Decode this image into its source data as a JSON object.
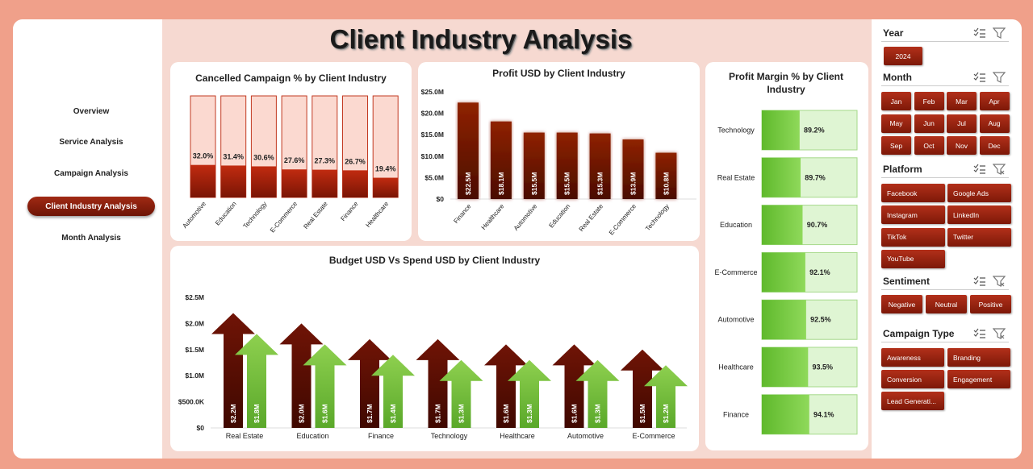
{
  "title": "Client Industry Analysis",
  "nav": {
    "items": [
      {
        "label": "Overview",
        "active": false
      },
      {
        "label": "Service Analysis",
        "active": false
      },
      {
        "label": "Campaign Analysis",
        "active": false
      },
      {
        "label": "Client Industry Analysis",
        "active": true
      },
      {
        "label": "Month Analysis",
        "active": false
      }
    ]
  },
  "colors": {
    "accent": "#8b1a0a",
    "dark_bar": "#6e1403",
    "light_bar": "#f9d7cf",
    "green": "#6cbf36",
    "green_bg": "#dff5d3"
  },
  "chart_data": [
    {
      "type": "bar",
      "title": "Cancelled Campaign % by Client Industry",
      "categories": [
        "Automotive",
        "Education",
        "Technology",
        "E-Commerce",
        "Real Estate",
        "Finance",
        "Healthcare"
      ],
      "values": [
        32.0,
        31.4,
        30.6,
        27.6,
        27.3,
        26.7,
        19.4
      ],
      "labels": [
        "32.0%",
        "31.4%",
        "30.6%",
        "27.6%",
        "27.3%",
        "26.7%",
        "19.4%"
      ],
      "ylim": [
        0,
        100
      ]
    },
    {
      "type": "bar",
      "title": "Profit USD by Client Industry",
      "categories": [
        "Finance",
        "Healthcare",
        "Automotive",
        "Education",
        "Real Estate",
        "E-Commerce",
        "Technology"
      ],
      "values": [
        22.5,
        18.1,
        15.5,
        15.5,
        15.3,
        13.9,
        10.8
      ],
      "labels": [
        "$22.5M",
        "$18.1M",
        "$15.5M",
        "$15.5M",
        "$15.3M",
        "$13.9M",
        "$10.8M"
      ],
      "yticks": [
        "$0",
        "$5.0M",
        "$10.0M",
        "$15.0M",
        "$20.0M",
        "$25.0M"
      ],
      "ylim": [
        0,
        25
      ]
    },
    {
      "type": "bar",
      "title": "Profit Margin % by Client Industry",
      "orientation": "horizontal",
      "categories": [
        "Technology",
        "Real Estate",
        "Education",
        "E-Commerce",
        "Automotive",
        "Healthcare",
        "Finance"
      ],
      "values": [
        89.2,
        89.7,
        90.7,
        92.1,
        92.5,
        93.5,
        94.1
      ],
      "labels": [
        "89.2%",
        "89.7%",
        "90.7%",
        "92.1%",
        "92.5%",
        "93.5%",
        "94.1%"
      ],
      "xlim": [
        0,
        100
      ]
    },
    {
      "type": "bar",
      "title": "Budget USD Vs Spend USD by Client Industry",
      "categories": [
        "Real Estate",
        "Education",
        "Finance",
        "Technology",
        "Healthcare",
        "Automotive",
        "E-Commerce"
      ],
      "series": [
        {
          "name": "Budget USD",
          "values": [
            2.2,
            2.0,
            1.7,
            1.7,
            1.6,
            1.6,
            1.5
          ],
          "labels": [
            "$2.2M",
            "$2.0M",
            "$1.7M",
            "$1.7M",
            "$1.6M",
            "$1.6M",
            "$1.5M"
          ]
        },
        {
          "name": "Spend USD",
          "values": [
            1.8,
            1.6,
            1.4,
            1.3,
            1.3,
            1.3,
            1.2
          ],
          "labels": [
            "$1.8M",
            "$1.6M",
            "$1.4M",
            "$1.3M",
            "$1.3M",
            "$1.3M",
            "$1.2M"
          ]
        }
      ],
      "yticks": [
        "$0",
        "$500.0K",
        "$1.0M",
        "$1.5M",
        "$2.0M",
        "$2.5M"
      ],
      "ylim": [
        0,
        2.5
      ],
      "legend_position": "bottom"
    }
  ],
  "slicers": {
    "year": {
      "name": "Year",
      "items": [
        "2024"
      ]
    },
    "month": {
      "name": "Month",
      "items": [
        "Jan",
        "Feb",
        "Mar",
        "Apr",
        "May",
        "Jun",
        "Jul",
        "Aug",
        "Sep",
        "Oct",
        "Nov",
        "Dec"
      ]
    },
    "platform": {
      "name": "Platform",
      "items": [
        "Facebook",
        "Google Ads",
        "Instagram",
        "LinkedIn",
        "TikTok",
        "Twitter",
        "YouTube"
      ]
    },
    "sentiment": {
      "name": "Sentiment",
      "items": [
        "Negative",
        "Neutral",
        "Positive"
      ]
    },
    "campaign_type": {
      "name": "Campaign Type",
      "items": [
        "Awareness",
        "Branding",
        "Conversion",
        "Engagement",
        "Lead Generati..."
      ]
    }
  }
}
